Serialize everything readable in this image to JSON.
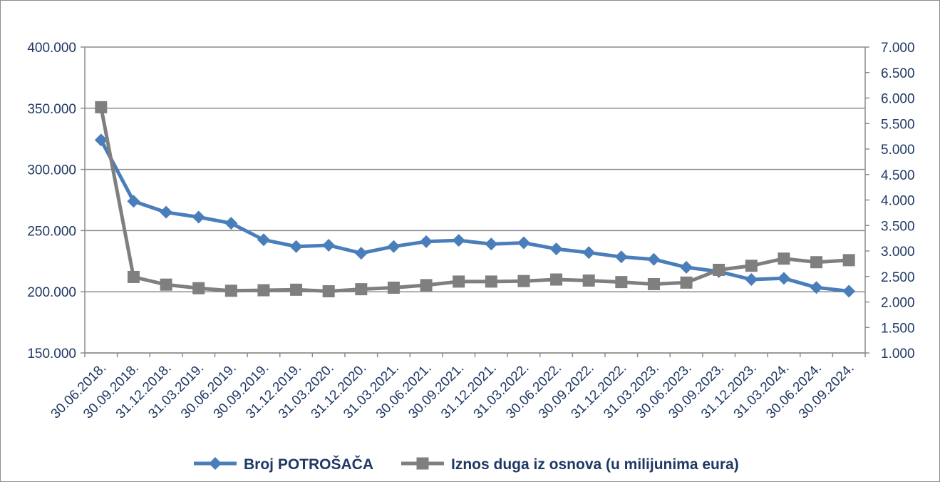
{
  "chart_data": {
    "type": "line",
    "categories": [
      "30.06.2018.",
      "30.09.2018.",
      "31.12.2018.",
      "31.03.2019.",
      "30.06.2019.",
      "30.09.2019.",
      "31.12.2019.",
      "31.03.2020.",
      "31.12.2020.",
      "31.03.2021.",
      "30.06.2021.",
      "30.09.2021.",
      "31.12.2021.",
      "31.03.2022.",
      "30.06.2022.",
      "30.09.2022.",
      "31.12.2022.",
      "31.03.2023.",
      "30.06.2023.",
      "30.09.2023.",
      "31.12.2023.",
      "31.03.2024.",
      "30.06.2024.",
      "30.09.2024."
    ],
    "series": [
      {
        "name": "Broj POTROŠAČA",
        "axis": "left",
        "color": "#4a7ebb",
        "marker": "diamond",
        "values": [
          324000,
          274000,
          265000,
          261000,
          256000,
          242500,
          237000,
          238000,
          231500,
          237000,
          241000,
          242000,
          239000,
          240000,
          235000,
          232000,
          228500,
          226500,
          220000,
          216500,
          210000,
          211000,
          203500,
          200500
        ]
      },
      {
        "name": "Iznos duga iz osnova (u milijunima eura)",
        "axis": "right",
        "color": "#7f7f7f",
        "marker": "square",
        "values": [
          5820,
          2490,
          2340,
          2270,
          2220,
          2230,
          2240,
          2210,
          2250,
          2280,
          2330,
          2400,
          2400,
          2410,
          2440,
          2420,
          2390,
          2350,
          2380,
          2630,
          2710,
          2850,
          2780,
          2820
        ]
      }
    ],
    "yleft": {
      "ylim": [
        150000,
        400000
      ],
      "ticks": [
        "150.000",
        "200.000",
        "250.000",
        "300.000",
        "350.000",
        "400.000"
      ],
      "tick_values": [
        150000,
        200000,
        250000,
        300000,
        350000,
        400000
      ]
    },
    "yright": {
      "ylim": [
        1000,
        7000
      ],
      "ticks": [
        "1.000",
        "1.500",
        "2.000",
        "2.500",
        "3.000",
        "3.500",
        "4.000",
        "4.500",
        "5.000",
        "5.500",
        "6.000",
        "6.500",
        "7.000"
      ],
      "tick_values": [
        1000,
        1500,
        2000,
        2500,
        3000,
        3500,
        4000,
        4500,
        5000,
        5500,
        6000,
        6500,
        7000
      ]
    },
    "grid": true,
    "legend_position": "bottom"
  },
  "colors": {
    "tick_text": "#1f3864",
    "gridline": "#8c8c8c",
    "axis": "#8c8c8c"
  }
}
